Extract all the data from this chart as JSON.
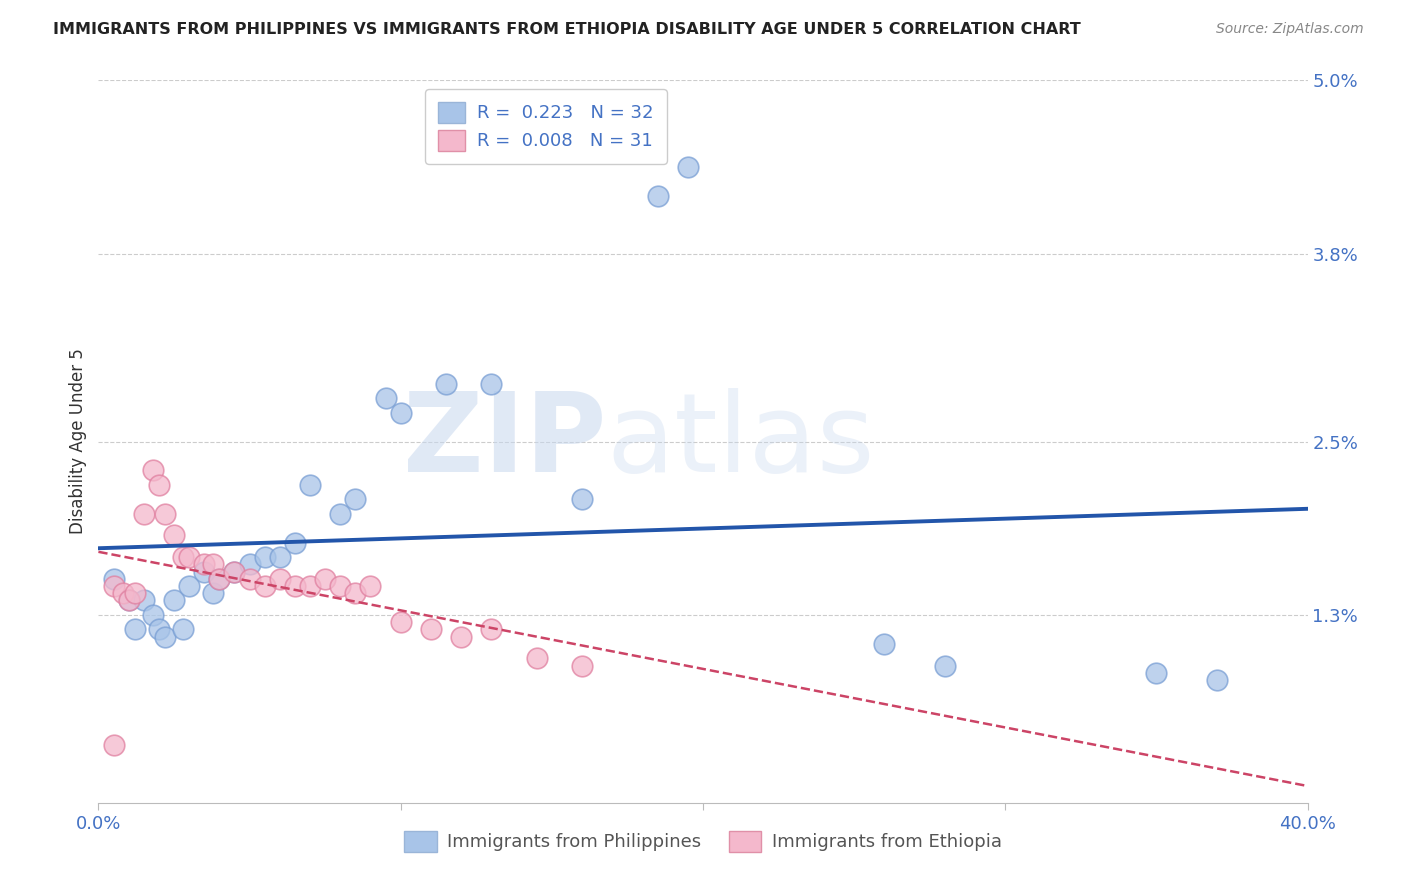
{
  "title": "IMMIGRANTS FROM PHILIPPINES VS IMMIGRANTS FROM ETHIOPIA DISABILITY AGE UNDER 5 CORRELATION CHART",
  "source": "Source: ZipAtlas.com",
  "ylabel": "Disability Age Under 5",
  "xlabel": "",
  "xlim": [
    0.0,
    0.4
  ],
  "ylim": [
    0.0,
    0.05
  ],
  "yticks": [
    0.013,
    0.025,
    0.038,
    0.05
  ],
  "ytick_labels": [
    "1.3%",
    "2.5%",
    "3.8%",
    "5.0%"
  ],
  "xticks": [
    0.0,
    0.1,
    0.2,
    0.3,
    0.4
  ],
  "xtick_labels": [
    "0.0%",
    "",
    "",
    "",
    "40.0%"
  ],
  "philippines_R": 0.223,
  "philippines_N": 32,
  "ethiopia_R": 0.008,
  "ethiopia_N": 31,
  "philippines_color": "#a8c4e8",
  "ethiopia_color": "#f4b8cc",
  "philippines_line_color": "#2255aa",
  "ethiopia_line_color": "#cc4466",
  "background_color": "#ffffff",
  "watermark_zip": "ZIP",
  "watermark_atlas": "atlas",
  "phil_x": [
    0.005,
    0.01,
    0.012,
    0.015,
    0.018,
    0.02,
    0.022,
    0.025,
    0.028,
    0.03,
    0.035,
    0.038,
    0.04,
    0.045,
    0.05,
    0.055,
    0.06,
    0.065,
    0.07,
    0.08,
    0.085,
    0.095,
    0.1,
    0.115,
    0.13,
    0.16,
    0.185,
    0.195,
    0.26,
    0.28,
    0.35,
    0.37
  ],
  "phil_y": [
    0.0155,
    0.014,
    0.012,
    0.014,
    0.013,
    0.012,
    0.0115,
    0.014,
    0.012,
    0.015,
    0.016,
    0.0145,
    0.0155,
    0.016,
    0.0165,
    0.017,
    0.017,
    0.018,
    0.022,
    0.02,
    0.021,
    0.028,
    0.027,
    0.029,
    0.029,
    0.021,
    0.042,
    0.044,
    0.011,
    0.0095,
    0.009,
    0.0085
  ],
  "eth_x": [
    0.005,
    0.008,
    0.01,
    0.012,
    0.015,
    0.018,
    0.02,
    0.022,
    0.025,
    0.028,
    0.03,
    0.035,
    0.038,
    0.04,
    0.045,
    0.05,
    0.055,
    0.06,
    0.065,
    0.07,
    0.075,
    0.08,
    0.085,
    0.09,
    0.1,
    0.11,
    0.12,
    0.13,
    0.145,
    0.16,
    0.005
  ],
  "eth_y": [
    0.015,
    0.0145,
    0.014,
    0.0145,
    0.02,
    0.023,
    0.022,
    0.02,
    0.0185,
    0.017,
    0.017,
    0.0165,
    0.0165,
    0.0155,
    0.016,
    0.0155,
    0.015,
    0.0155,
    0.015,
    0.015,
    0.0155,
    0.015,
    0.0145,
    0.015,
    0.0125,
    0.012,
    0.0115,
    0.012,
    0.01,
    0.0095,
    0.004
  ]
}
